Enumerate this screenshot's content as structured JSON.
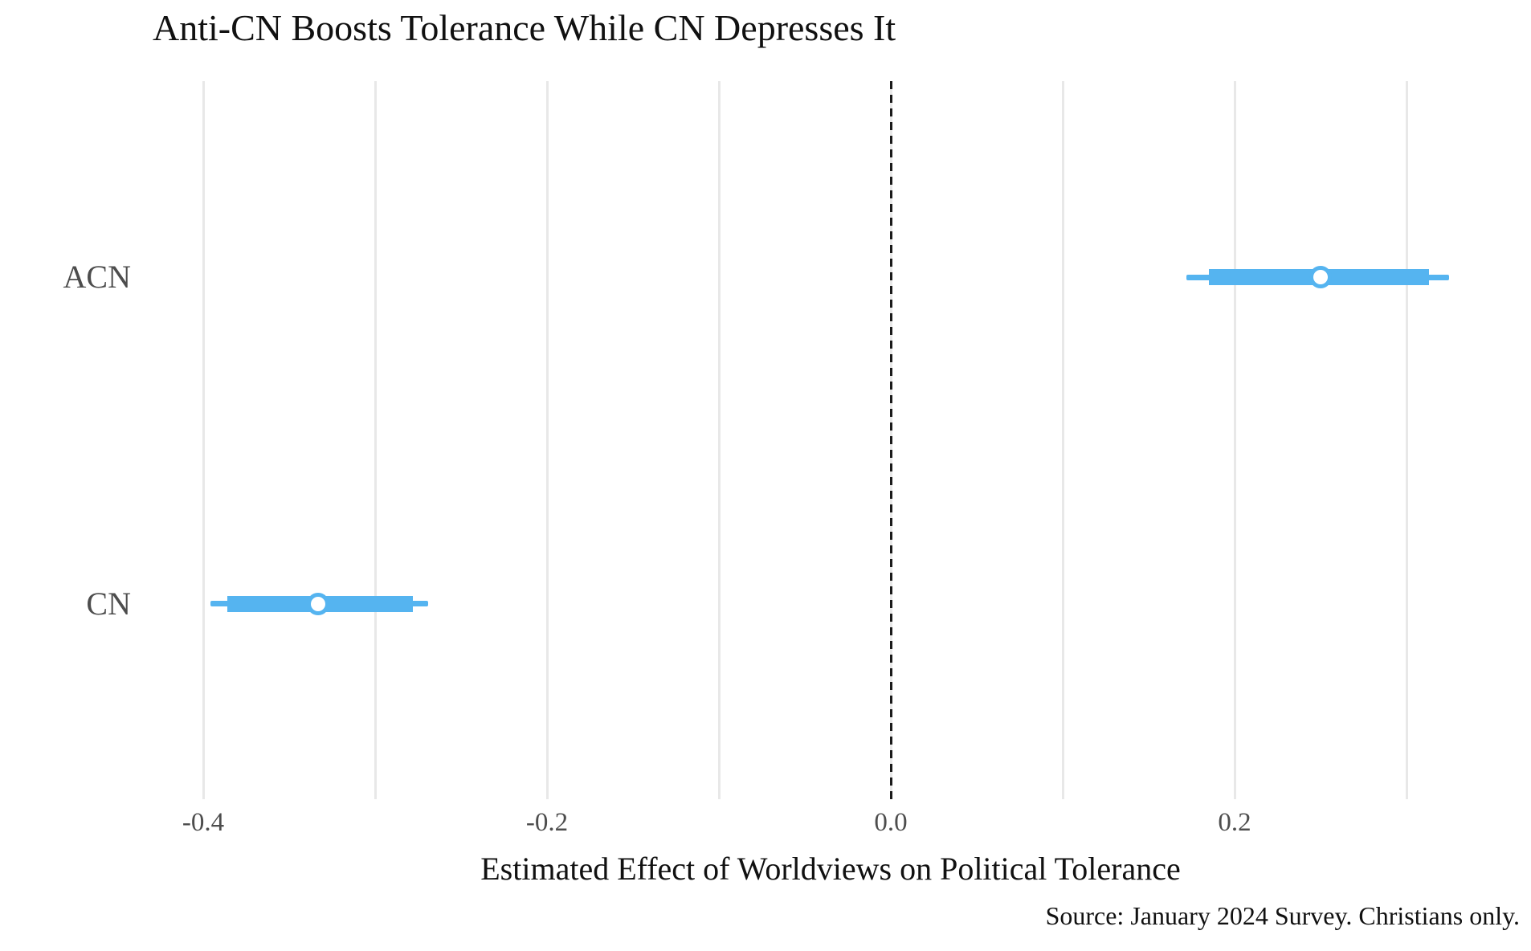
{
  "title": "Anti-CN Boosts Tolerance While CN Depresses It",
  "xlabel": "Estimated Effect of Worldviews on Political Tolerance",
  "caption": "Source: January 2024 Survey. Christians only.",
  "chart_data": {
    "type": "scatter",
    "subtype": "coefficient-dot-whisker",
    "title": "Anti-CN Boosts Tolerance While CN Depresses It",
    "xlabel": "Estimated Effect of Worldviews on Political Tolerance",
    "caption": "Source: January 2024 Survey. Christians only.",
    "categories": [
      "ACN",
      "CN"
    ],
    "series": [
      {
        "name": "ACN",
        "estimate": 0.25,
        "ci_inner": [
          0.185,
          0.313
        ],
        "ci_outer": [
          0.172,
          0.325
        ]
      },
      {
        "name": "CN",
        "estimate": -0.333,
        "ci_inner": [
          -0.386,
          -0.278
        ],
        "ci_outer": [
          -0.396,
          -0.269
        ]
      }
    ],
    "x_ticks": [
      -0.4,
      -0.2,
      0.0,
      0.2
    ],
    "x_tick_labels": [
      "-0.4",
      "-0.2",
      "0.0",
      "0.2"
    ],
    "gridlines": [
      -0.4,
      -0.3,
      -0.2,
      -0.1,
      0.0,
      0.1,
      0.2,
      0.3
    ],
    "reference_line": 0.0,
    "xlim": [
      -0.42,
      0.36
    ],
    "grid": "vertical-only",
    "legend": "none",
    "colors": {
      "bar": "#55b4f0",
      "marker_fill": "#ffffff",
      "grid": "#e8e8e8",
      "refline": "#1a1a1a",
      "axis_text": "#4d4d4d",
      "title_text": "#111111"
    }
  }
}
